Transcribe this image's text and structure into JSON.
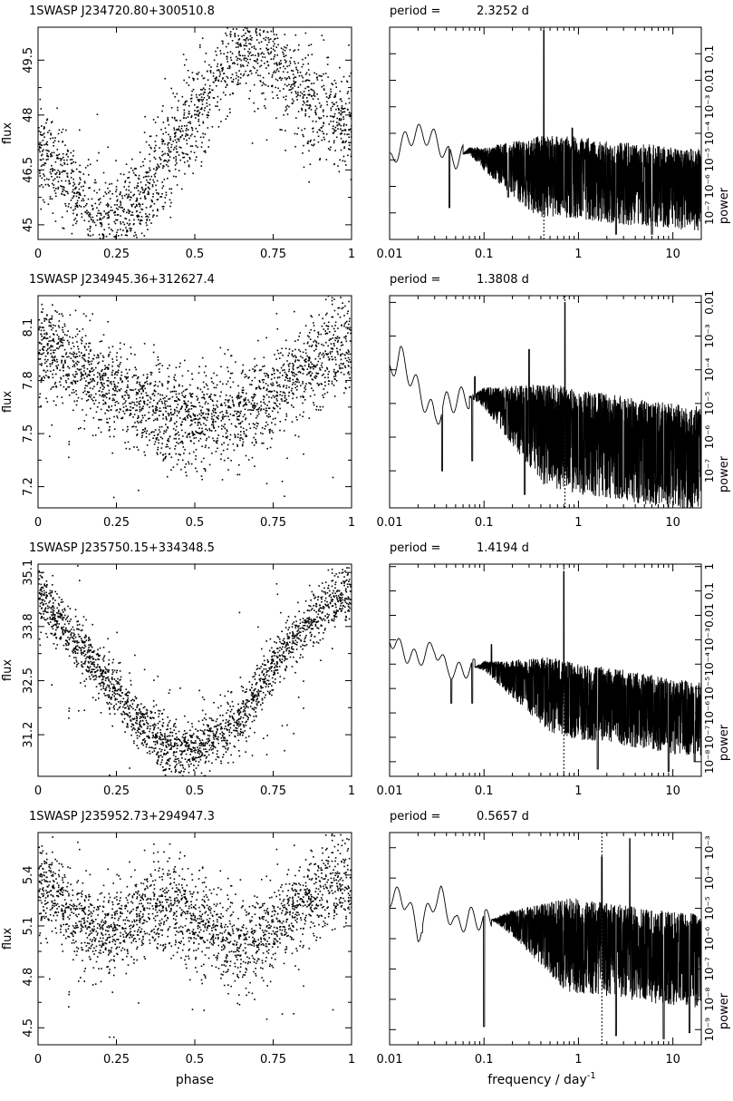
{
  "figure": {
    "xlabel_left": "phase",
    "xlabel_right": "frequency / day",
    "xlabel_right_exponent": "-1",
    "ylabel_left": "flux",
    "ylabel_right": "power",
    "period_prefix": "period ="
  },
  "chart_data": [
    {
      "type": "scatter",
      "title": "1SWASP  J234720.80+300510.8",
      "xlabel": "",
      "ylabel": "flux",
      "xlim": [
        0,
        1
      ],
      "ylim": [
        44.6,
        50.4
      ],
      "xticks": [
        "0",
        "0.25",
        "0.5",
        "0.75",
        "1"
      ],
      "yticks": [
        45,
        46.5,
        48,
        49.5
      ],
      "ytick_labels": [
        "45",
        "46.5",
        "48",
        "49.5"
      ],
      "curve_x": [
        0,
        0.05,
        0.1,
        0.15,
        0.2,
        0.25,
        0.3,
        0.35,
        0.4,
        0.45,
        0.5,
        0.55,
        0.6,
        0.65,
        0.7,
        0.75,
        0.8,
        0.85,
        0.9,
        0.95,
        1
      ],
      "curve_y": [
        47.2,
        46.7,
        46.0,
        45.5,
        45.1,
        45.0,
        45.3,
        46.0,
        46.8,
        47.5,
        48.1,
        48.6,
        49.3,
        49.8,
        49.9,
        49.6,
        49.0,
        48.5,
        48.1,
        47.8,
        47.6
      ],
      "scatter_sd": 0.65,
      "n_points": 1900
    },
    {
      "type": "line",
      "title": "period =",
      "period": "2.3252 d",
      "xlabel": "",
      "ylabel": "power",
      "xscale": "log",
      "xlim": [
        0.01,
        20
      ],
      "yscale": "log",
      "ylim_exp": [
        -8,
        0
      ],
      "xticks": [
        0.01,
        0.1,
        1,
        10
      ],
      "xtick_labels": [
        "0.01",
        "0.1",
        "1",
        "10"
      ],
      "yticks_exp": [
        -7,
        -6,
        -5,
        -4,
        -3,
        -2,
        -1
      ],
      "ytick_labels": [
        "10⁻⁷",
        "10⁻⁶",
        "10⁻⁵",
        "10⁻⁴",
        "10⁻³",
        "0.01",
        "0.1"
      ],
      "peak_freq": 0.43,
      "peak_exp": -0.1,
      "dashed_at": 0.43,
      "envelope_freq": [
        0.01,
        0.015,
        0.02,
        0.03,
        0.04,
        0.05,
        0.07,
        0.1,
        0.2,
        0.3,
        0.5,
        1,
        2,
        5,
        10,
        20
      ],
      "envelope_exp": [
        -5.1,
        -4.2,
        -4.0,
        -4.2,
        -4.8,
        -5.0,
        -4.6,
        -4.8,
        -4.9,
        -5.0,
        -5.0,
        -5.0,
        -5.2,
        -5.3,
        -5.4,
        -5.5
      ],
      "noise_start": 0.06,
      "dips_freq": [
        0.043,
        0.18,
        0.7,
        2.5,
        6
      ],
      "dips_exp": [
        -6.8,
        -6.4,
        -6.8,
        -7.8,
        -7.8
      ],
      "secondary_freq": [
        0.86
      ],
      "secondary_exp": [
        -3.8
      ]
    },
    {
      "type": "scatter",
      "title": "1SWASP  J234945.36+312627.4",
      "xlabel": "",
      "ylabel": "flux",
      "xlim": [
        0,
        1
      ],
      "ylim": [
        7.08,
        8.28
      ],
      "xticks": [
        "0",
        "0.25",
        "0.5",
        "0.75",
        "1"
      ],
      "yticks": [
        7.2,
        7.5,
        7.8,
        8.1
      ],
      "ytick_labels": [
        "7.2",
        "7.5",
        "7.8",
        "8.1"
      ],
      "curve_x": [
        0,
        0.05,
        0.1,
        0.15,
        0.2,
        0.25,
        0.3,
        0.35,
        0.4,
        0.45,
        0.5,
        0.55,
        0.6,
        0.65,
        0.7,
        0.75,
        0.8,
        0.85,
        0.9,
        0.95,
        1
      ],
      "curve_y": [
        8.0,
        7.97,
        7.92,
        7.86,
        7.8,
        7.74,
        7.69,
        7.65,
        7.61,
        7.58,
        7.57,
        7.58,
        7.61,
        7.64,
        7.68,
        7.74,
        7.8,
        7.87,
        7.93,
        7.98,
        8.0
      ],
      "scatter_sd": 0.13,
      "n_points": 2200
    },
    {
      "type": "line",
      "title": "period =",
      "period": "1.3808 d",
      "xlabel": "",
      "ylabel": "power",
      "xscale": "log",
      "xlim": [
        0.01,
        20
      ],
      "yscale": "log",
      "ylim_exp": [
        -8.1,
        -1.8
      ],
      "xticks": [
        0.01,
        0.1,
        1,
        10
      ],
      "xtick_labels": [
        "0.01",
        "0.1",
        "1",
        "10"
      ],
      "yticks_exp": [
        -7,
        -6,
        -5,
        -4,
        -3,
        -2
      ],
      "ytick_labels": [
        "10⁻⁷",
        "10⁻⁶",
        "10⁻⁵",
        "10⁻⁴",
        "10⁻³",
        "0.01"
      ],
      "peak_freq": 0.72,
      "peak_exp": -2.0,
      "dashed_at": 0.72,
      "envelope_freq": [
        0.01,
        0.013,
        0.02,
        0.03,
        0.04,
        0.05,
        0.07,
        0.1,
        0.2,
        0.5,
        1,
        2,
        5,
        10,
        20
      ],
      "envelope_exp": [
        -4.0,
        -3.6,
        -4.6,
        -5.4,
        -5.0,
        -4.9,
        -4.8,
        -4.7,
        -5.0,
        -5.3,
        -5.5,
        -5.6,
        -5.8,
        -5.9,
        -6.0
      ],
      "noise_start": 0.07,
      "dips_freq": [
        0.036,
        0.075,
        0.27,
        1.0,
        3,
        8
      ],
      "dips_exp": [
        -7.0,
        -6.7,
        -7.7,
        -7.4,
        -7.6,
        -7.8
      ],
      "secondary_freq": [
        0.3,
        0.08
      ],
      "secondary_exp": [
        -3.4,
        -4.2
      ]
    },
    {
      "type": "scatter",
      "title": "1SWASP  J235750.15+334348.5",
      "xlabel": "",
      "ylabel": "flux",
      "xlim": [
        0,
        1
      ],
      "ylim": [
        30.2,
        35.3
      ],
      "xticks": [
        "0",
        "0.25",
        "0.5",
        "0.75",
        "1"
      ],
      "yticks": [
        31.2,
        32.5,
        33.8,
        35.1
      ],
      "ytick_labels": [
        "31.2",
        "32.5",
        "33.8",
        "35.1"
      ],
      "curve_x": [
        0,
        0.05,
        0.1,
        0.15,
        0.2,
        0.25,
        0.3,
        0.35,
        0.4,
        0.45,
        0.5,
        0.55,
        0.6,
        0.65,
        0.7,
        0.75,
        0.8,
        0.85,
        0.9,
        0.95,
        1
      ],
      "curve_y": [
        34.6,
        34.1,
        33.6,
        33.2,
        32.7,
        32.2,
        31.7,
        31.3,
        31.0,
        30.8,
        30.8,
        31.0,
        31.3,
        31.7,
        32.3,
        32.9,
        33.4,
        33.8,
        34.2,
        34.5,
        34.6
      ],
      "scatter_sd": 0.33,
      "n_points": 2200
    },
    {
      "type": "line",
      "title": "period =",
      "period": "1.4194 d",
      "xlabel": "",
      "ylabel": "power",
      "xscale": "log",
      "xlim": [
        0.01,
        20
      ],
      "yscale": "log",
      "ylim_exp": [
        -8.6,
        0.1
      ],
      "xticks": [
        0.01,
        0.1,
        1,
        10
      ],
      "xtick_labels": [
        "0.01",
        "0.1",
        "1",
        "10"
      ],
      "yticks_exp": [
        -8,
        -7,
        -6,
        -5,
        -4,
        -3,
        -2,
        -1,
        0
      ],
      "ytick_labels": [
        "10⁻⁸",
        "10⁻⁷",
        "10⁻⁶",
        "10⁻⁵",
        "10⁻⁴",
        "10⁻³",
        "0.01",
        "0.1",
        "1"
      ],
      "peak_freq": 0.7,
      "peak_exp": -0.2,
      "dashed_at": 0.7,
      "envelope_freq": [
        0.01,
        0.015,
        0.02,
        0.03,
        0.04,
        0.05,
        0.07,
        0.1,
        0.2,
        0.5,
        1,
        2,
        5,
        10,
        20
      ],
      "envelope_exp": [
        -2.9,
        -3.6,
        -3.8,
        -3.3,
        -4.2,
        -4.3,
        -4.2,
        -4.0,
        -4.3,
        -4.6,
        -4.9,
        -5.0,
        -5.3,
        -5.5,
        -5.6
      ],
      "noise_start": 0.08,
      "dips_freq": [
        0.045,
        0.075,
        1.6,
        9,
        17
      ],
      "dips_exp": [
        -5.6,
        -5.6,
        -8.3,
        -8.4,
        -8.0
      ],
      "secondary_freq": [
        0.12
      ],
      "secondary_exp": [
        -3.2
      ]
    },
    {
      "type": "scatter",
      "title": "1SWASP  J235952.73+294947.3",
      "xlabel": "",
      "ylabel": "flux",
      "xlim": [
        0,
        1
      ],
      "ylim": [
        4.4,
        5.65
      ],
      "xticks": [
        "0",
        "0.25",
        "0.5",
        "0.75",
        "1"
      ],
      "yticks": [
        4.5,
        4.8,
        5.1,
        5.4
      ],
      "ytick_labels": [
        "4.5",
        "4.8",
        "5.1",
        "5.4"
      ],
      "curve_x": [
        0,
        0.05,
        0.1,
        0.15,
        0.2,
        0.25,
        0.3,
        0.35,
        0.4,
        0.45,
        0.5,
        0.55,
        0.6,
        0.65,
        0.7,
        0.75,
        0.8,
        0.85,
        0.9,
        0.95,
        1
      ],
      "curve_y": [
        5.35,
        5.27,
        5.19,
        5.12,
        5.07,
        5.08,
        5.14,
        5.2,
        5.22,
        5.2,
        5.12,
        5.06,
        5.02,
        5.0,
        5.03,
        5.09,
        5.17,
        5.25,
        5.31,
        5.35,
        5.36
      ],
      "scatter_sd": 0.13,
      "n_points": 2200
    },
    {
      "type": "line",
      "title": "period =",
      "period": "0.5657 d",
      "xlabel": "",
      "ylabel": "power",
      "xscale": "log",
      "xlim": [
        0.01,
        20
      ],
      "yscale": "log",
      "ylim_exp": [
        -9.5,
        -2.5
      ],
      "xticks": [
        0.01,
        0.1,
        1,
        10
      ],
      "xtick_labels": [
        "0.01",
        "0.1",
        "1",
        "10"
      ],
      "yticks_exp": [
        -9,
        -8,
        -7,
        -6,
        -5,
        -4,
        -3
      ],
      "ytick_labels": [
        "10⁻⁹",
        "10⁻⁸",
        "10⁻⁷",
        "10⁻⁶",
        "10⁻⁵",
        "10⁻⁴",
        "10⁻³"
      ],
      "peak_freq": 3.5,
      "peak_exp": -2.7,
      "dashed_at": 1.77,
      "envelope_freq": [
        0.01,
        0.015,
        0.02,
        0.03,
        0.035,
        0.05,
        0.07,
        0.1,
        0.2,
        0.5,
        1,
        2,
        5,
        10,
        20
      ],
      "envelope_exp": [
        -4.6,
        -4.7,
        -5.8,
        -4.7,
        -4.6,
        -5.6,
        -5.3,
        -5.4,
        -5.3,
        -5.5,
        -5.6,
        -5.7,
        -5.9,
        -6.0,
        -6.1
      ],
      "noise_start": 0.12,
      "dips_freq": [
        0.022,
        0.1,
        2.5,
        8,
        15
      ],
      "dips_exp": [
        -5.8,
        -8.9,
        -9.2,
        -9.3,
        -9.1
      ],
      "secondary_freq": [
        1.77
      ],
      "secondary_exp": [
        -3.3
      ]
    }
  ]
}
